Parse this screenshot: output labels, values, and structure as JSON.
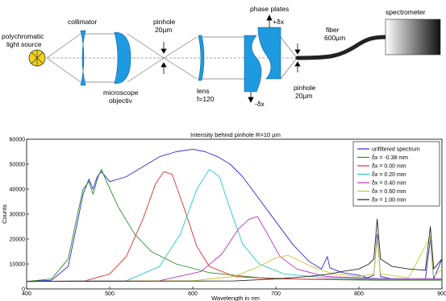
{
  "diagram": {
    "labels": {
      "source": [
        "polychromatic",
        "light source"
      ],
      "collimator": "collimator",
      "pinhole1": [
        "pinhole",
        "20µm"
      ],
      "microscope": [
        "microscope",
        "objectiv"
      ],
      "lens": [
        "lens",
        "f=120"
      ],
      "phase_plates": "phase plates",
      "plus_dx": "+δx",
      "minus_dx": "-δx",
      "pinhole2": [
        "pinhole",
        "20µm"
      ],
      "fiber": [
        "fiber",
        "600µm"
      ],
      "spectrometer": "spectrometer"
    },
    "colors": {
      "optics": "#1e9ae0",
      "source_fill": "#f2d21b",
      "fiber": "#222222"
    }
  },
  "chart_data": {
    "type": "line",
    "title": "Intensity behind pinhole R=10 µm",
    "xlabel": "Wavelength in nm",
    "ylabel": "Counts",
    "xlim": [
      400,
      900
    ],
    "ylim": [
      0,
      60000
    ],
    "xticks": [
      400,
      500,
      600,
      700,
      800,
      900
    ],
    "yticks": [
      0,
      10000,
      20000,
      30000,
      40000,
      50000,
      60000
    ],
    "legend": "top-right",
    "series": [
      {
        "name": "unfiltered spectrum",
        "color": "#2b2bd6",
        "points": [
          [
            400,
            3000
          ],
          [
            430,
            3500
          ],
          [
            450,
            9000
          ],
          [
            460,
            25000
          ],
          [
            468,
            38000
          ],
          [
            475,
            44000
          ],
          [
            480,
            40000
          ],
          [
            485,
            45000
          ],
          [
            490,
            47000
          ],
          [
            500,
            43000
          ],
          [
            520,
            45000
          ],
          [
            540,
            49000
          ],
          [
            560,
            53000
          ],
          [
            580,
            55000
          ],
          [
            600,
            56000
          ],
          [
            615,
            55000
          ],
          [
            630,
            53000
          ],
          [
            645,
            50000
          ],
          [
            660,
            45000
          ],
          [
            680,
            36000
          ],
          [
            700,
            27000
          ],
          [
            720,
            18000
          ],
          [
            740,
            11000
          ],
          [
            755,
            8000
          ],
          [
            762,
            13000
          ],
          [
            765,
            8500
          ],
          [
            780,
            6500
          ],
          [
            800,
            5500
          ],
          [
            810,
            4500
          ],
          [
            818,
            5500
          ],
          [
            822,
            22000
          ],
          [
            826,
            5000
          ],
          [
            840,
            4000
          ],
          [
            860,
            4000
          ],
          [
            880,
            3800
          ],
          [
            886,
            20000
          ],
          [
            890,
            4000
          ],
          [
            900,
            12000
          ]
        ]
      },
      {
        "name": "δx = -0.38 mm",
        "color": "#2e8b2e",
        "points": [
          [
            400,
            3000
          ],
          [
            430,
            4000
          ],
          [
            450,
            12000
          ],
          [
            460,
            28000
          ],
          [
            468,
            40000
          ],
          [
            475,
            43000
          ],
          [
            480,
            38000
          ],
          [
            485,
            44000
          ],
          [
            490,
            48000
          ],
          [
            495,
            44000
          ],
          [
            510,
            33000
          ],
          [
            530,
            22000
          ],
          [
            550,
            15000
          ],
          [
            580,
            10000
          ],
          [
            620,
            6500
          ],
          [
            680,
            4500
          ],
          [
            740,
            3800
          ],
          [
            820,
            3500
          ],
          [
            900,
            3500
          ]
        ]
      },
      {
        "name": "δx =  0.00 mm",
        "color": "#e03030",
        "points": [
          [
            400,
            3000
          ],
          [
            470,
            3200
          ],
          [
            500,
            6000
          ],
          [
            520,
            13000
          ],
          [
            540,
            28000
          ],
          [
            555,
            42000
          ],
          [
            565,
            47000
          ],
          [
            575,
            46000
          ],
          [
            590,
            32000
          ],
          [
            605,
            17000
          ],
          [
            620,
            9000
          ],
          [
            650,
            5000
          ],
          [
            700,
            4000
          ],
          [
            800,
            3800
          ],
          [
            900,
            3800
          ]
        ]
      },
      {
        "name": "δx =  0.20 mm",
        "color": "#28c8c8",
        "points": [
          [
            400,
            3000
          ],
          [
            520,
            3300
          ],
          [
            560,
            9000
          ],
          [
            585,
            22000
          ],
          [
            605,
            40000
          ],
          [
            620,
            48000
          ],
          [
            632,
            45000
          ],
          [
            645,
            32000
          ],
          [
            660,
            18000
          ],
          [
            680,
            10000
          ],
          [
            710,
            6000
          ],
          [
            760,
            4500
          ],
          [
            820,
            4000
          ],
          [
            900,
            4000
          ]
        ]
      },
      {
        "name": "δx =  0.40 mm",
        "color": "#c030c0",
        "points": [
          [
            400,
            3000
          ],
          [
            560,
            3300
          ],
          [
            610,
            7000
          ],
          [
            635,
            14000
          ],
          [
            655,
            24000
          ],
          [
            668,
            28000
          ],
          [
            678,
            29000
          ],
          [
            690,
            22000
          ],
          [
            705,
            13000
          ],
          [
            725,
            8000
          ],
          [
            760,
            5000
          ],
          [
            820,
            4200
          ],
          [
            900,
            4000
          ]
        ]
      },
      {
        "name": "δx =  0.60 mm",
        "color": "#c8c832",
        "points": [
          [
            400,
            3000
          ],
          [
            600,
            3300
          ],
          [
            650,
            5000
          ],
          [
            680,
            9000
          ],
          [
            700,
            12500
          ],
          [
            715,
            13500
          ],
          [
            730,
            11000
          ],
          [
            750,
            8000
          ],
          [
            770,
            6000
          ],
          [
            800,
            5000
          ],
          [
            818,
            6000
          ],
          [
            822,
            20000
          ],
          [
            826,
            6000
          ],
          [
            860,
            4500
          ],
          [
            886,
            21000
          ],
          [
            890,
            5000
          ],
          [
            900,
            8000
          ]
        ]
      },
      {
        "name": "δx =  1.00 mm",
        "color": "#222222",
        "points": [
          [
            400,
            3000
          ],
          [
            650,
            3200
          ],
          [
            700,
            4000
          ],
          [
            740,
            5000
          ],
          [
            765,
            6000
          ],
          [
            780,
            7000
          ],
          [
            800,
            8000
          ],
          [
            812,
            10000
          ],
          [
            818,
            12000
          ],
          [
            822,
            28000
          ],
          [
            826,
            12000
          ],
          [
            840,
            9000
          ],
          [
            860,
            8000
          ],
          [
            880,
            7500
          ],
          [
            886,
            25000
          ],
          [
            890,
            8000
          ],
          [
            900,
            12000
          ]
        ]
      }
    ]
  }
}
